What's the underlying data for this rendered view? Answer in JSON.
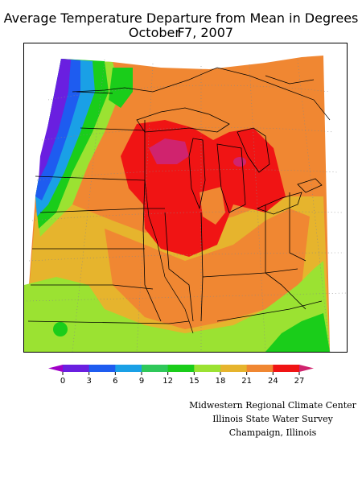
{
  "title": {
    "line1": "Average Temperature Departure from Mean in Degrees F",
    "line2": "October 7, 2007"
  },
  "legend": {
    "ticks": [
      "0",
      "3",
      "6",
      "9",
      "12",
      "15",
      "18",
      "21",
      "24",
      "27"
    ],
    "colors": [
      "#a000c8",
      "#6a1fe0",
      "#1e5cf0",
      "#1aa0e6",
      "#2fc85a",
      "#1acd1a",
      "#9be232",
      "#e6b42d",
      "#f08732",
      "#f01414",
      "#d0236e"
    ]
  },
  "credits": {
    "line1": "Midwestern Regional Climate Center",
    "line2": "Illinois State Water Survey",
    "line3": "Champaign, Illinois"
  }
}
